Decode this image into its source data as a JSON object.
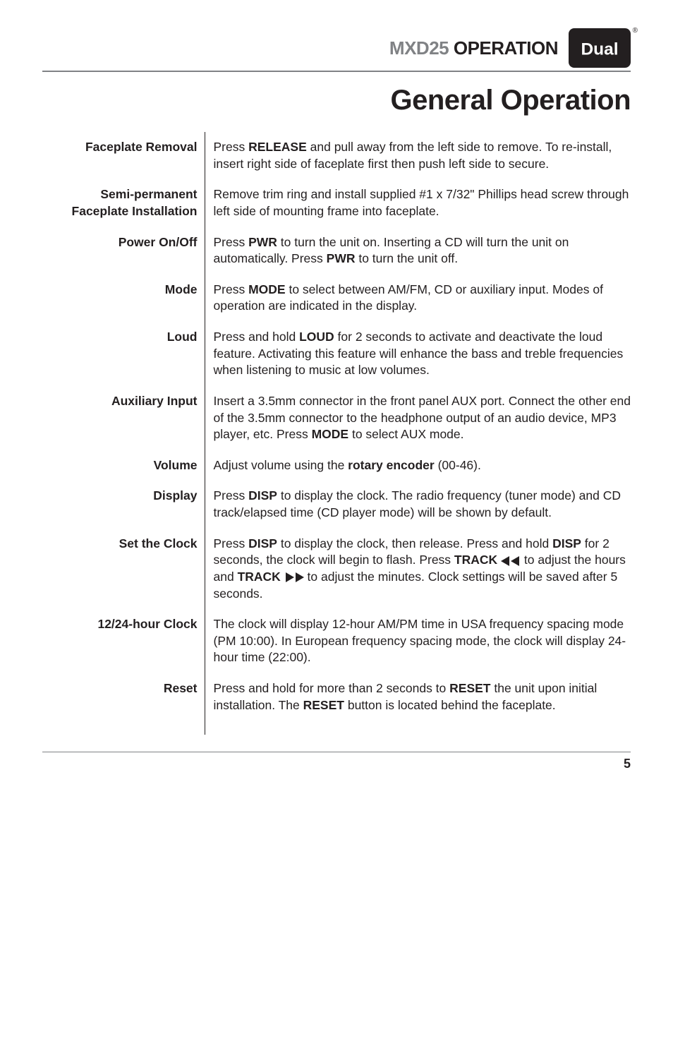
{
  "header": {
    "product": "MXD25",
    "operation": "OPERATION",
    "logo_text": "Dual",
    "logo_bg": "#231f20",
    "logo_fg": "#ffffff"
  },
  "title": "General Operation",
  "rows": [
    {
      "label": "Faceplate Removal",
      "desc_parts": [
        {
          "t": "Press "
        },
        {
          "t": "RELEASE",
          "b": true
        },
        {
          "t": " and pull away from the left side to remove. To re-install, insert right side of faceplate first then push left side to secure."
        }
      ]
    },
    {
      "label": "Semi-permanent Faceplate Installation",
      "desc_parts": [
        {
          "t": "Remove trim ring and install supplied #1 x 7/32\" Phillips head screw through left side of mounting frame into faceplate."
        }
      ]
    },
    {
      "label": "Power On/Off",
      "desc_parts": [
        {
          "t": "Press "
        },
        {
          "t": "PWR",
          "b": true
        },
        {
          "t": " to turn the unit on. Inserting a CD will turn the unit on automatically. Press "
        },
        {
          "t": "PWR",
          "b": true
        },
        {
          "t": " to turn the unit off."
        }
      ]
    },
    {
      "label": "Mode",
      "desc_parts": [
        {
          "t": "Press "
        },
        {
          "t": "MODE",
          "b": true
        },
        {
          "t": " to select between AM/FM, CD or auxiliary input. Modes of operation are indicated in the display."
        }
      ]
    },
    {
      "label": "Loud",
      "desc_parts": [
        {
          "t": "Press and hold "
        },
        {
          "t": "LOUD",
          "b": true
        },
        {
          "t": " for 2 seconds to activate and deactivate the loud feature. Activating this feature will enhance the bass and treble frequencies when listening to music at low volumes."
        }
      ]
    },
    {
      "label": "Auxiliary Input",
      "desc_parts": [
        {
          "t": "Insert a 3.5mm connector in the front panel AUX port. Connect the other end of the 3.5mm connector to the headphone output of an audio device, MP3 player, etc. Press "
        },
        {
          "t": "MODE",
          "b": true
        },
        {
          "t": " to select AUX mode."
        }
      ]
    },
    {
      "label": "Volume",
      "desc_parts": [
        {
          "t": "Adjust volume using the "
        },
        {
          "t": "rotary encoder",
          "b": true
        },
        {
          "t": " (00-46)."
        }
      ]
    },
    {
      "label": "Display",
      "desc_parts": [
        {
          "t": "Press "
        },
        {
          "t": "DISP",
          "b": true
        },
        {
          "t": " to display the clock. The radio frequency (tuner mode) and CD track/elapsed time (CD player mode) will be shown by default."
        }
      ]
    },
    {
      "label": "Set the Clock",
      "desc_parts": [
        {
          "t": "Press "
        },
        {
          "t": "DISP",
          "b": true
        },
        {
          "t": " to display the clock, then release. Press and hold "
        },
        {
          "t": "DISP",
          "b": true
        },
        {
          "t": " for 2 seconds, the clock will begin to flash. Press "
        },
        {
          "t": "TRACK ",
          "b": true
        },
        {
          "arrow": "left"
        },
        {
          "t": " to adjust the hours and "
        },
        {
          "t": "TRACK ",
          "b": true
        },
        {
          "arrow": "right"
        },
        {
          "t": " to adjust the minutes. Clock settings will be saved after 5 seconds."
        }
      ]
    },
    {
      "label": "12/24-hour Clock",
      "desc_parts": [
        {
          "t": "The clock will display 12-hour AM/PM time in USA frequency spacing mode (PM 10:00). In European frequency spacing mode, the clock will display 24-hour time (22:00)."
        }
      ]
    },
    {
      "label": "Reset",
      "desc_parts": [
        {
          "t": "Press and hold for more than 2 seconds to "
        },
        {
          "t": "RESET",
          "b": true
        },
        {
          "t": " the unit upon initial installation. The "
        },
        {
          "t": "RESET",
          "b": true
        },
        {
          "t": " button is located behind the faceplate."
        }
      ],
      "extra_bottom": true
    }
  ],
  "page_number": "5",
  "colors": {
    "text": "#231f20",
    "muted": "#808285",
    "rule": "#808285",
    "bg": "#ffffff"
  },
  "fonts": {
    "body_size": 17.5,
    "title_size": 40,
    "header_size": 26
  }
}
